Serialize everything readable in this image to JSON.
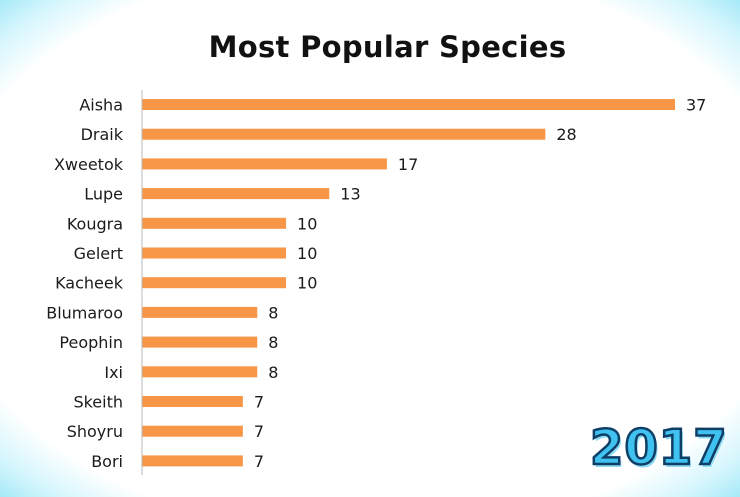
{
  "chart_data": {
    "type": "bar",
    "orientation": "horizontal",
    "title": "Most Popular Species",
    "categories": [
      "Aisha",
      "Draik",
      "Xweetok",
      "Lupe",
      "Kougra",
      "Gelert",
      "Kacheek",
      "Blumaroo",
      "Peophin",
      "Ixi",
      "Skeith",
      "Shoyru",
      "Bori"
    ],
    "values": [
      37,
      28,
      17,
      13,
      10,
      10,
      10,
      8,
      8,
      8,
      7,
      7,
      7
    ],
    "xlim": [
      0,
      37
    ],
    "bar_color": "#f79646",
    "grid": false,
    "data_labels": true
  },
  "badge": {
    "text": "2017",
    "fill_color": "#3fc2ef",
    "outline_color": "#0f3f66"
  }
}
